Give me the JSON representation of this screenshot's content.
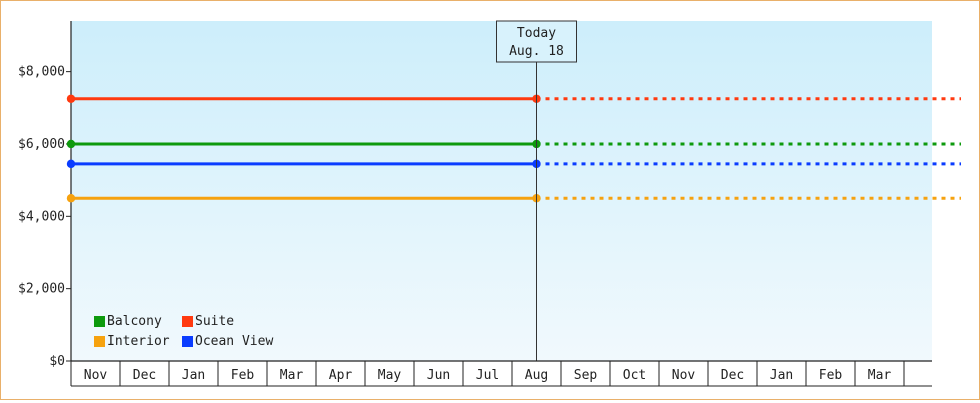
{
  "chart_data": {
    "type": "line",
    "y_ticks": [
      "$0",
      "$2,000",
      "$4,000",
      "$6,000",
      "$8,000"
    ],
    "y_tick_values": [
      0,
      2000,
      4000,
      6000,
      8000
    ],
    "ylim": [
      0,
      9400
    ],
    "months": [
      "Nov",
      "Dec",
      "Jan",
      "Feb",
      "Mar",
      "Apr",
      "May",
      "Jun",
      "Jul",
      "Aug",
      "Sep",
      "Oct",
      "Nov",
      "Dec",
      "Jan",
      "Feb",
      "Mar"
    ],
    "x_range": [
      "Nov",
      "Mar"
    ],
    "today": {
      "line1": "Today",
      "line2": "Aug. 18",
      "month_index": 9
    },
    "series": [
      {
        "name": "Suite",
        "color": "#ff3a10",
        "value": 7250
      },
      {
        "name": "Balcony",
        "color": "#0d9a0d",
        "value": 6000
      },
      {
        "name": "Ocean View",
        "color": "#0a3cff",
        "value": 5450
      },
      {
        "name": "Interior",
        "color": "#f6a20f",
        "value": 4500
      }
    ],
    "legend": {
      "position": "bottom-left",
      "rows": [
        [
          "Balcony",
          "Suite"
        ],
        [
          "Interior",
          "Ocean View"
        ]
      ]
    },
    "style": {
      "solid_until": "today",
      "dashed_after": "today",
      "grid": false,
      "background": "light blue gradient"
    }
  }
}
